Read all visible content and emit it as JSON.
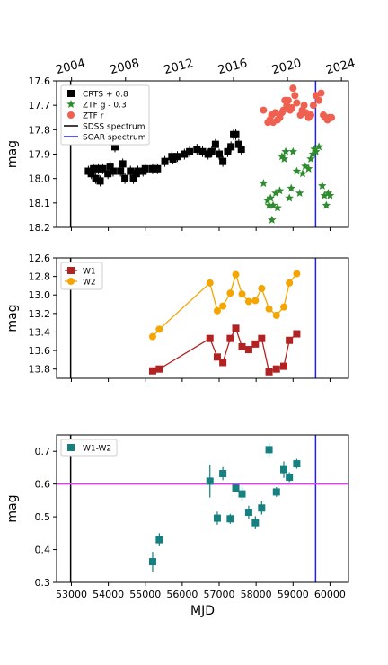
{
  "chart_data": [
    {
      "type": "scatter",
      "id": "optical",
      "ylabel": "mag",
      "xlim": [
        52600,
        60500
      ],
      "ylim": [
        18.2,
        17.6
      ],
      "inverted_y": true,
      "y_ticks": [
        "17.6",
        "17.7",
        "17.8",
        "17.9",
        "18.0",
        "18.1",
        "18.2"
      ],
      "top_axis_ticks": [
        {
          "label": "2004",
          "mjd": 53005
        },
        {
          "label": "2008",
          "mjd": 54466
        },
        {
          "label": "2012",
          "mjd": 55927
        },
        {
          "label": "2016",
          "mjd": 57388
        },
        {
          "label": "2020",
          "mjd": 58849
        },
        {
          "label": "2024",
          "mjd": 60310
        }
      ],
      "legend_position": "upper-left",
      "vlines": [
        {
          "name": "SDSS spectrum",
          "x": 52980,
          "color": "#000000"
        },
        {
          "name": "SOAR spectrum",
          "x": 59610,
          "color": "#2222dd"
        }
      ],
      "series": [
        {
          "name": "CRTS + 0.8",
          "marker": "square",
          "color": "#000000",
          "points": [
            [
              53460,
              17.97
            ],
            [
              53540,
              17.98
            ],
            [
              53600,
              17.96
            ],
            [
              53660,
              18.0
            ],
            [
              53730,
              17.96
            ],
            [
              53780,
              18.01
            ],
            [
              53850,
              17.96
            ],
            [
              53990,
              17.98
            ],
            [
              54050,
              17.95
            ],
            [
              54130,
              17.97
            ],
            [
              54180,
              17.87
            ],
            [
              54330,
              17.97
            ],
            [
              54390,
              17.94
            ],
            [
              54450,
              18.0
            ],
            [
              54600,
              17.97
            ],
            [
              54680,
              18.0
            ],
            [
              54760,
              17.98
            ],
            [
              54800,
              17.97
            ],
            [
              54940,
              17.97
            ],
            [
              55000,
              17.96
            ],
            [
              55200,
              17.96
            ],
            [
              55330,
              17.96
            ],
            [
              55530,
              17.93
            ],
            [
              55720,
              17.91
            ],
            [
              55750,
              17.92
            ],
            [
              55870,
              17.91
            ],
            [
              56060,
              17.9
            ],
            [
              56200,
              17.89
            ],
            [
              56400,
              17.88
            ],
            [
              56550,
              17.89
            ],
            [
              56700,
              17.9
            ],
            [
              56800,
              17.89
            ],
            [
              56900,
              17.86
            ],
            [
              57000,
              17.9
            ],
            [
              57100,
              17.93
            ],
            [
              57230,
              17.89
            ],
            [
              57320,
              17.87
            ],
            [
              57390,
              17.82
            ],
            [
              57450,
              17.82
            ],
            [
              57530,
              17.86
            ],
            [
              57600,
              17.88
            ]
          ]
        },
        {
          "name": "ZTF g - 0.3",
          "marker": "star",
          "color": "#2e8b2e",
          "points": [
            [
              58200,
              18.02
            ],
            [
              58310,
              18.09
            ],
            [
              58350,
              18.11
            ],
            [
              58390,
              18.08
            ],
            [
              58430,
              18.17
            ],
            [
              58460,
              18.11
            ],
            [
              58530,
              18.06
            ],
            [
              58580,
              18.12
            ],
            [
              58640,
              18.05
            ],
            [
              58700,
              17.91
            ],
            [
              58760,
              17.92
            ],
            [
              58800,
              17.89
            ],
            [
              58900,
              18.08
            ],
            [
              58950,
              18.04
            ],
            [
              59000,
              17.89
            ],
            [
              59100,
              17.97
            ],
            [
              59180,
              18.06
            ],
            [
              59260,
              17.98
            ],
            [
              59330,
              17.95
            ],
            [
              59420,
              17.96
            ],
            [
              59480,
              17.92
            ],
            [
              59540,
              17.9
            ],
            [
              59580,
              17.88
            ],
            [
              59620,
              17.89
            ],
            [
              59700,
              17.87
            ],
            [
              59790,
              18.03
            ],
            [
              59850,
              18.07
            ],
            [
              59900,
              18.11
            ],
            [
              59950,
              18.06
            ],
            [
              60000,
              18.07
            ]
          ]
        },
        {
          "name": "ZTF r",
          "marker": "circle",
          "color": "#f06050",
          "points": [
            [
              58200,
              17.72
            ],
            [
              58320,
              17.77
            ],
            [
              58370,
              17.76
            ],
            [
              58420,
              17.74
            ],
            [
              58460,
              17.77
            ],
            [
              58520,
              17.73
            ],
            [
              58580,
              17.76
            ],
            [
              58640,
              17.75
            ],
            [
              58700,
              17.73
            ],
            [
              58740,
              17.72
            ],
            [
              58780,
              17.68
            ],
            [
              58830,
              17.7
            ],
            [
              58870,
              17.68
            ],
            [
              58920,
              17.72
            ],
            [
              58970,
              17.71
            ],
            [
              59000,
              17.63
            ],
            [
              59050,
              17.66
            ],
            [
              59100,
              17.69
            ],
            [
              59200,
              17.74
            ],
            [
              59250,
              17.72
            ],
            [
              59300,
              17.7
            ],
            [
              59350,
              17.73
            ],
            [
              59420,
              17.75
            ],
            [
              59480,
              17.74
            ],
            [
              59550,
              17.7
            ],
            [
              59620,
              17.66
            ],
            [
              59700,
              17.68
            ],
            [
              59760,
              17.65
            ],
            [
              59820,
              17.74
            ],
            [
              59880,
              17.75
            ],
            [
              59930,
              17.76
            ],
            [
              59980,
              17.75
            ],
            [
              60040,
              17.75
            ]
          ]
        }
      ]
    },
    {
      "type": "line",
      "id": "wise",
      "ylabel": "mag",
      "xlim": [
        52600,
        60500
      ],
      "ylim": [
        13.9,
        12.6
      ],
      "inverted_y": true,
      "y_ticks": [
        "12.6",
        "12.8",
        "13.0",
        "13.2",
        "13.4",
        "13.6",
        "13.8"
      ],
      "legend_position": "upper-left",
      "vlines": [
        {
          "x": 52980,
          "color": "#000000"
        },
        {
          "x": 59610,
          "color": "#2222dd"
        }
      ],
      "series": [
        {
          "name": "W1",
          "marker": "square",
          "color": "#b22222",
          "points": [
            [
              55200,
              13.82
            ],
            [
              55380,
              13.8
            ],
            [
              56750,
              13.47
            ],
            [
              56950,
              13.67
            ],
            [
              57100,
              13.73
            ],
            [
              57300,
              13.47
            ],
            [
              57450,
              13.36
            ],
            [
              57620,
              13.56
            ],
            [
              57800,
              13.59
            ],
            [
              57980,
              13.53
            ],
            [
              58150,
              13.47
            ],
            [
              58350,
              13.83
            ],
            [
              58550,
              13.8
            ],
            [
              58750,
              13.77
            ],
            [
              58900,
              13.49
            ],
            [
              59100,
              13.42
            ]
          ]
        },
        {
          "name": "W2",
          "marker": "circle",
          "color": "#f5a500",
          "points": [
            [
              55200,
              13.45
            ],
            [
              55380,
              13.37
            ],
            [
              56750,
              12.87
            ],
            [
              56950,
              13.17
            ],
            [
              57100,
              13.12
            ],
            [
              57300,
              12.98
            ],
            [
              57450,
              12.78
            ],
            [
              57620,
              12.99
            ],
            [
              57800,
              13.07
            ],
            [
              57980,
              13.06
            ],
            [
              58150,
              12.93
            ],
            [
              58350,
              13.15
            ],
            [
              58550,
              13.22
            ],
            [
              58750,
              13.13
            ],
            [
              58900,
              12.87
            ],
            [
              59100,
              12.77
            ]
          ]
        }
      ]
    },
    {
      "type": "scatter",
      "id": "color",
      "xlabel": "MJD",
      "ylabel": "mag",
      "xlim": [
        52600,
        60500
      ],
      "ylim": [
        0.3,
        0.75
      ],
      "x_ticks": [
        "53000",
        "54000",
        "55000",
        "56000",
        "57000",
        "58000",
        "59000",
        "60000"
      ],
      "y_ticks": [
        "0.3",
        "0.4",
        "0.5",
        "0.6",
        "0.7"
      ],
      "legend_position": "upper-left",
      "hline": {
        "y": 0.6,
        "color": "#e040fb"
      },
      "vlines": [
        {
          "x": 52980,
          "color": "#000000"
        },
        {
          "x": 59610,
          "color": "#2222dd"
        }
      ],
      "series": [
        {
          "name": "W1-W2",
          "marker": "square",
          "color": "#168080",
          "points": [
            [
              55200,
              0.363
            ],
            [
              55380,
              0.43
            ],
            [
              56750,
              0.609
            ],
            [
              56950,
              0.496
            ],
            [
              57100,
              0.632
            ],
            [
              57300,
              0.494
            ],
            [
              57450,
              0.588
            ],
            [
              57620,
              0.57
            ],
            [
              57800,
              0.514
            ],
            [
              57980,
              0.482
            ],
            [
              58150,
              0.527
            ],
            [
              58350,
              0.705
            ],
            [
              58550,
              0.576
            ],
            [
              58750,
              0.644
            ],
            [
              58900,
              0.621
            ],
            [
              59100,
              0.662
            ]
          ],
          "errors": [
            0.03,
            0.02,
            0.05,
            0.02,
            0.02,
            0.015,
            0.01,
            0.02,
            0.02,
            0.02,
            0.02,
            0.02,
            0.015,
            0.025,
            0.015,
            0.015
          ]
        }
      ]
    }
  ]
}
